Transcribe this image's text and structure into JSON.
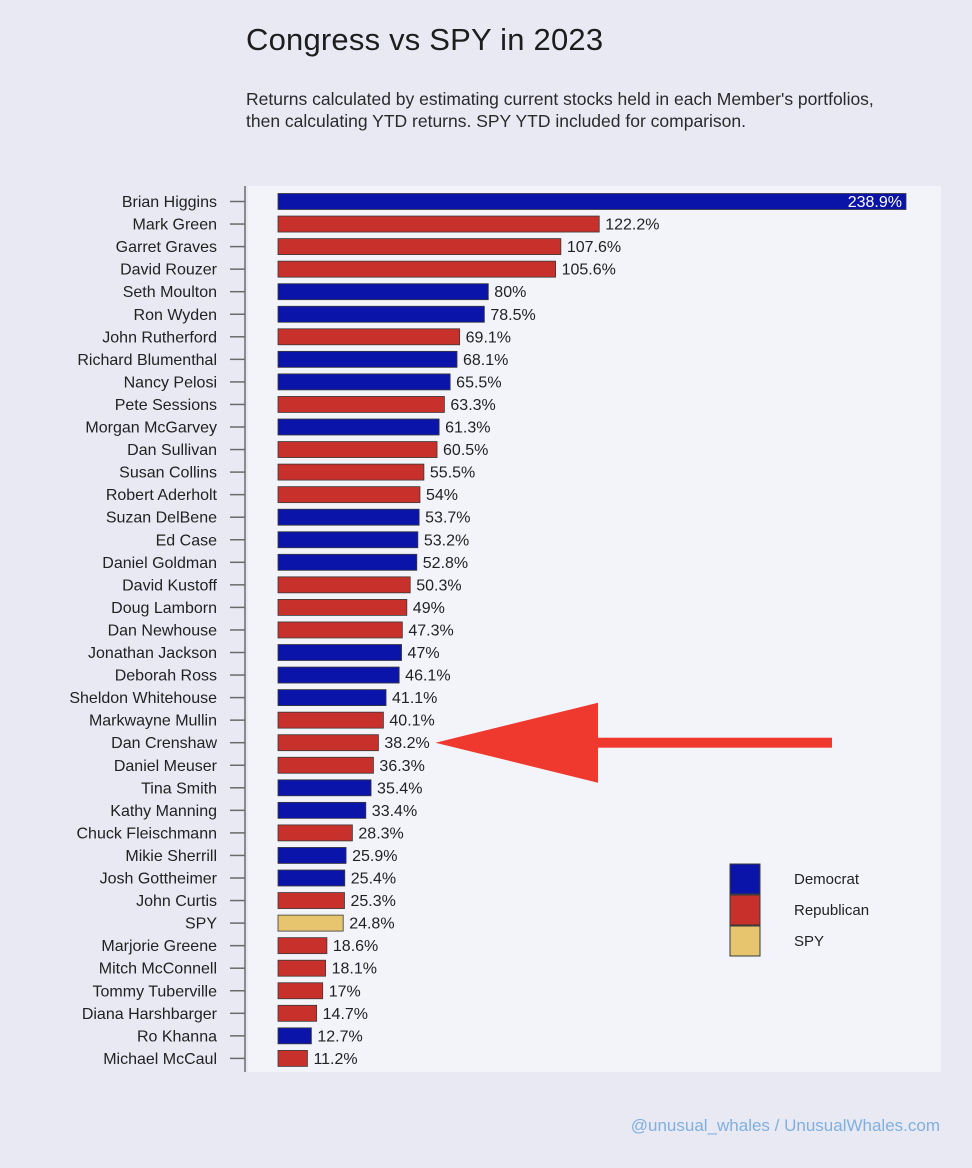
{
  "title": "Congress vs SPY in 2023",
  "subtitle": "Returns calculated by estimating current stocks held in each Member's portfolios, then calculating YTD returns. SPY YTD included for comparison.",
  "watermark": "@unusual_whales / UnusualWhales.com",
  "colors": {
    "Democrat": "#0a14a8",
    "Republican": "#c8302c",
    "SPY": "#e7c46e",
    "plot_bg": "#f3f4fa",
    "annotation_arrow": "#f0392e"
  },
  "legend": [
    {
      "label": "Democrat",
      "key": "Democrat"
    },
    {
      "label": "Republican",
      "key": "Republican"
    },
    {
      "label": "SPY",
      "key": "SPY"
    }
  ],
  "chart_data": {
    "type": "bar",
    "orientation": "horizontal",
    "title": "Congress vs SPY in 2023",
    "xlim": [
      0,
      245
    ],
    "grid": false,
    "legend_position": "bottom-right",
    "annotation": {
      "type": "arrow",
      "points_to": "Dan Crenshaw"
    },
    "bars": [
      {
        "name": "Brian Higgins",
        "value": 238.9,
        "label": "238.9%",
        "group": "Democrat"
      },
      {
        "name": "Mark Green",
        "value": 122.2,
        "label": "122.2%",
        "group": "Republican"
      },
      {
        "name": "Garret Graves",
        "value": 107.6,
        "label": "107.6%",
        "group": "Republican"
      },
      {
        "name": "David Rouzer",
        "value": 105.6,
        "label": "105.6%",
        "group": "Republican"
      },
      {
        "name": "Seth Moulton",
        "value": 80,
        "label": "80%",
        "group": "Democrat"
      },
      {
        "name": "Ron Wyden",
        "value": 78.5,
        "label": "78.5%",
        "group": "Democrat"
      },
      {
        "name": "John Rutherford",
        "value": 69.1,
        "label": "69.1%",
        "group": "Republican"
      },
      {
        "name": "Richard Blumenthal",
        "value": 68.1,
        "label": "68.1%",
        "group": "Democrat"
      },
      {
        "name": "Nancy Pelosi",
        "value": 65.5,
        "label": "65.5%",
        "group": "Democrat"
      },
      {
        "name": "Pete Sessions",
        "value": 63.3,
        "label": "63.3%",
        "group": "Republican"
      },
      {
        "name": "Morgan McGarvey",
        "value": 61.3,
        "label": "61.3%",
        "group": "Democrat"
      },
      {
        "name": "Dan Sullivan",
        "value": 60.5,
        "label": "60.5%",
        "group": "Republican"
      },
      {
        "name": "Susan Collins",
        "value": 55.5,
        "label": "55.5%",
        "group": "Republican"
      },
      {
        "name": "Robert Aderholt",
        "value": 54,
        "label": "54%",
        "group": "Republican"
      },
      {
        "name": "Suzan DelBene",
        "value": 53.7,
        "label": "53.7%",
        "group": "Democrat"
      },
      {
        "name": "Ed Case",
        "value": 53.2,
        "label": "53.2%",
        "group": "Democrat"
      },
      {
        "name": "Daniel Goldman",
        "value": 52.8,
        "label": "52.8%",
        "group": "Democrat"
      },
      {
        "name": "David Kustoff",
        "value": 50.3,
        "label": "50.3%",
        "group": "Republican"
      },
      {
        "name": "Doug Lamborn",
        "value": 49,
        "label": "49%",
        "group": "Republican"
      },
      {
        "name": "Dan Newhouse",
        "value": 47.3,
        "label": "47.3%",
        "group": "Republican"
      },
      {
        "name": "Jonathan Jackson",
        "value": 47,
        "label": "47%",
        "group": "Democrat"
      },
      {
        "name": "Deborah Ross",
        "value": 46.1,
        "label": "46.1%",
        "group": "Democrat"
      },
      {
        "name": "Sheldon Whitehouse",
        "value": 41.1,
        "label": "41.1%",
        "group": "Democrat"
      },
      {
        "name": "Markwayne Mullin",
        "value": 40.1,
        "label": "40.1%",
        "group": "Republican"
      },
      {
        "name": "Dan Crenshaw",
        "value": 38.2,
        "label": "38.2%",
        "group": "Republican"
      },
      {
        "name": "Daniel Meuser",
        "value": 36.3,
        "label": "36.3%",
        "group": "Republican"
      },
      {
        "name": "Tina Smith",
        "value": 35.4,
        "label": "35.4%",
        "group": "Democrat"
      },
      {
        "name": "Kathy Manning",
        "value": 33.4,
        "label": "33.4%",
        "group": "Democrat"
      },
      {
        "name": "Chuck Fleischmann",
        "value": 28.3,
        "label": "28.3%",
        "group": "Republican"
      },
      {
        "name": "Mikie Sherrill",
        "value": 25.9,
        "label": "25.9%",
        "group": "Democrat"
      },
      {
        "name": "Josh Gottheimer",
        "value": 25.4,
        "label": "25.4%",
        "group": "Democrat"
      },
      {
        "name": "John Curtis",
        "value": 25.3,
        "label": "25.3%",
        "group": "Republican"
      },
      {
        "name": "SPY",
        "value": 24.8,
        "label": "24.8%",
        "group": "SPY"
      },
      {
        "name": "Marjorie Greene",
        "value": 18.6,
        "label": "18.6%",
        "group": "Republican"
      },
      {
        "name": "Mitch McConnell",
        "value": 18.1,
        "label": "18.1%",
        "group": "Republican"
      },
      {
        "name": "Tommy Tuberville",
        "value": 17,
        "label": "17%",
        "group": "Republican"
      },
      {
        "name": "Diana Harshbarger",
        "value": 14.7,
        "label": "14.7%",
        "group": "Republican"
      },
      {
        "name": "Ro Khanna",
        "value": 12.7,
        "label": "12.7%",
        "group": "Democrat"
      },
      {
        "name": "Michael McCaul",
        "value": 11.2,
        "label": "11.2%",
        "group": "Republican"
      }
    ]
  }
}
